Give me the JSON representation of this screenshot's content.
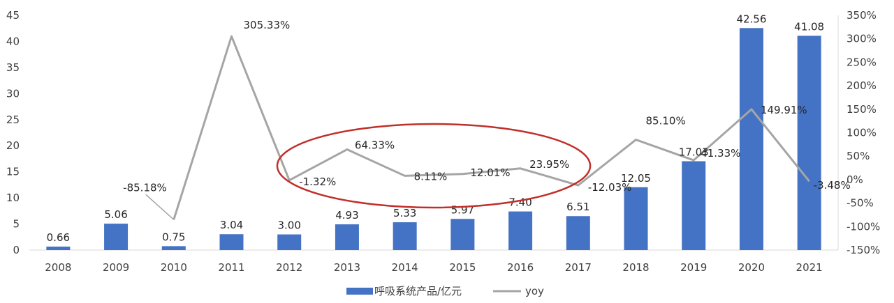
{
  "chart_data": {
    "type": "bar",
    "categories": [
      "2008",
      "2009",
      "2010",
      "2011",
      "2012",
      "2013",
      "2014",
      "2015",
      "2016",
      "2017",
      "2018",
      "2019",
      "2020",
      "2021"
    ],
    "series": [
      {
        "name": "呼吸系统产品/亿元",
        "type": "bar",
        "axis": "left",
        "color": "#4472C4",
        "values": [
          0.66,
          5.06,
          0.75,
          3.04,
          3.0,
          4.93,
          5.33,
          5.97,
          7.4,
          6.51,
          12.05,
          17.03,
          42.56,
          41.08
        ],
        "labels": [
          "0.66",
          "5.06",
          "0.75",
          "3.04",
          "3.00",
          "4.93",
          "5.33",
          "5.97",
          "7.40",
          "6.51",
          "12.05",
          "17.03",
          "42.56",
          "41.08"
        ]
      },
      {
        "name": "yoy",
        "type": "line",
        "axis": "right",
        "color": "#A5A5A5",
        "values": [
          null,
          null,
          -85.18,
          305.33,
          -1.32,
          64.33,
          8.11,
          12.01,
          23.95,
          -12.03,
          85.1,
          41.33,
          149.91,
          -3.48
        ],
        "labels": [
          "",
          "",
          "-85.18%",
          "305.33%",
          "-1.32%",
          "64.33%",
          "8.11%",
          "12.01%",
          "23.95%",
          "-12.03%",
          "85.10%",
          "41.33%",
          "149.91%",
          "-3.48%"
        ]
      }
    ],
    "y_left": {
      "min": 0,
      "max": 45,
      "step": 5,
      "ticks": [
        "0",
        "5",
        "10",
        "15",
        "20",
        "25",
        "30",
        "35",
        "40",
        "45"
      ]
    },
    "y_right": {
      "min": -150,
      "max": 350,
      "step": 50,
      "ticks": [
        "-150%",
        "-100%",
        "-50%",
        "0%",
        "50%",
        "100%",
        "150%",
        "200%",
        "250%",
        "300%",
        "350%"
      ]
    },
    "legend": {
      "position": "bottom",
      "items": [
        "呼吸系统产品/亿元",
        "yoy"
      ]
    },
    "annotation": {
      "type": "ellipse",
      "color": "#C0302B",
      "from_category": "2013",
      "to_category": "2016"
    },
    "grid": false
  }
}
